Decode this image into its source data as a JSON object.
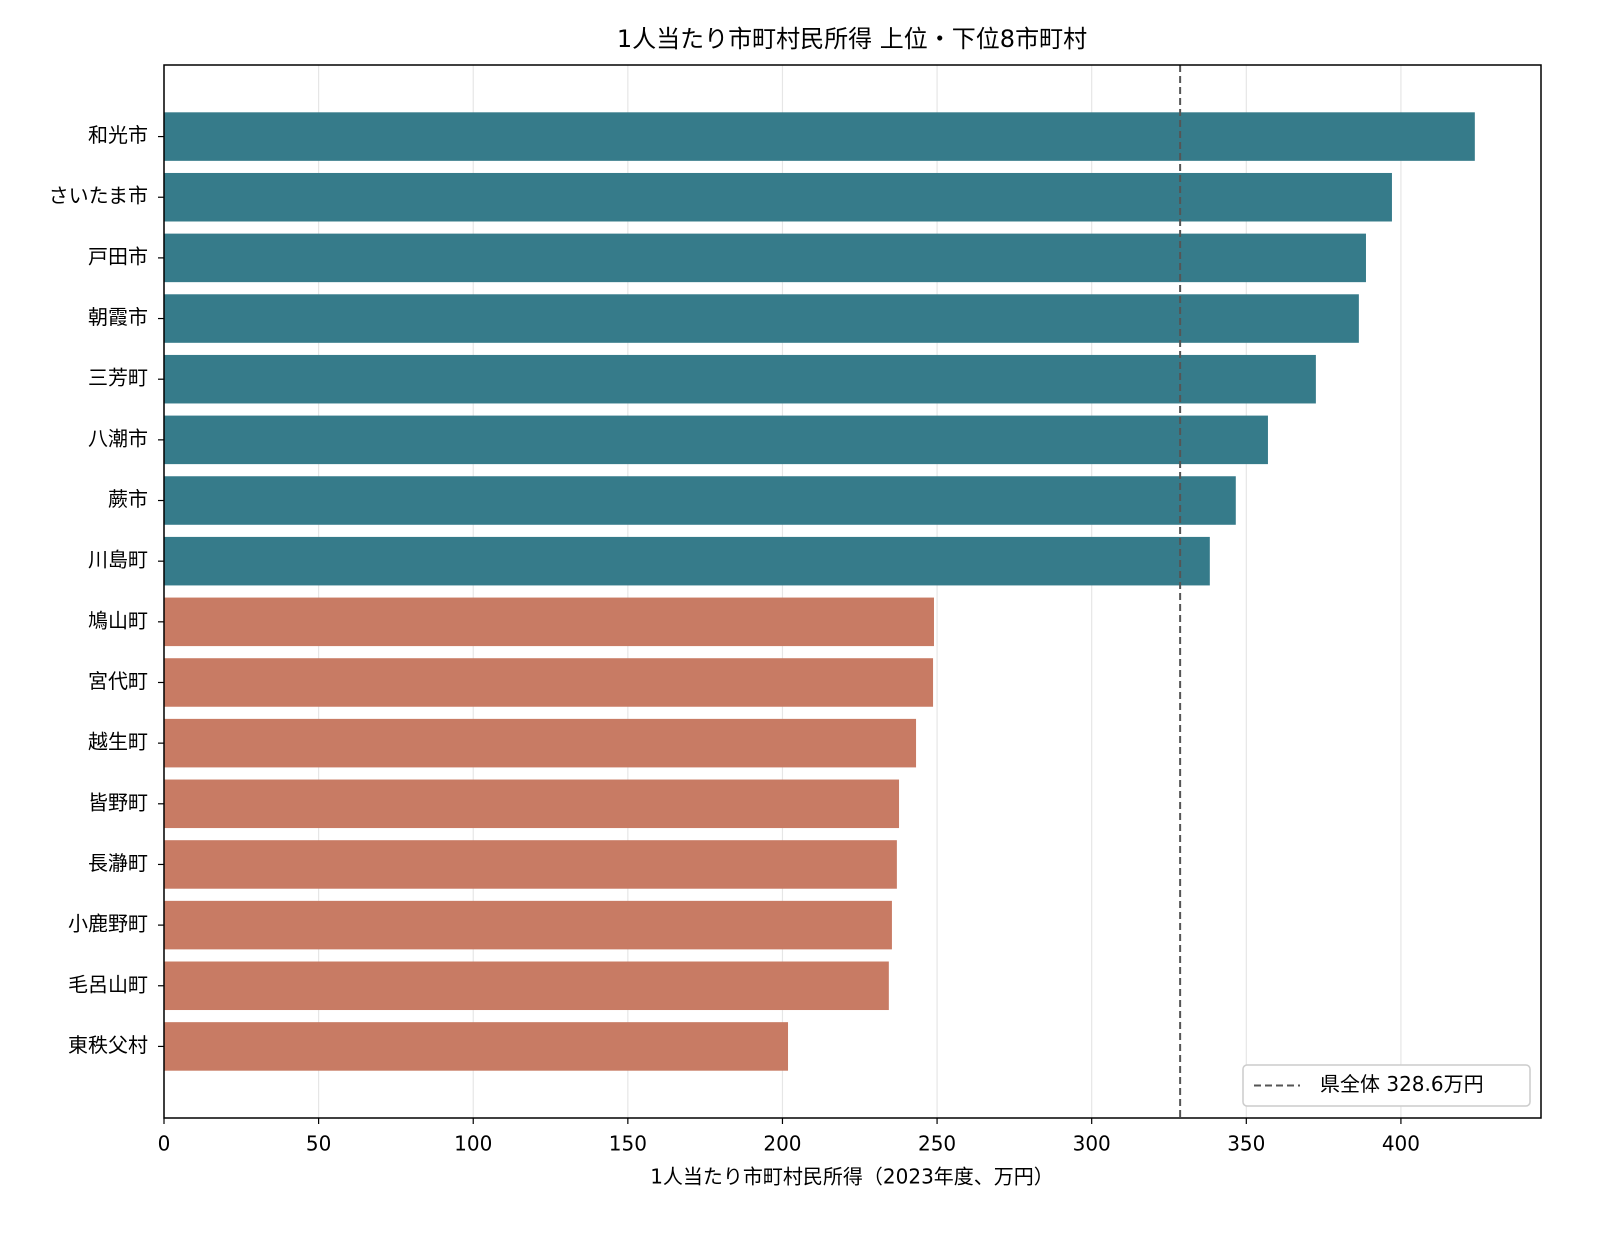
{
  "chart_data": {
    "type": "barh",
    "title": "1人当たり市町村民所得 上位・下位8市町村",
    "xlabel": "1人当たり市町村民所得（2023年度、万円）",
    "categories": [
      "和光市",
      "さいたま市",
      "戸田市",
      "朝霞市",
      "三芳町",
      "八潮市",
      "蕨市",
      "川島町",
      "鳩山町",
      "宮代町",
      "越生町",
      "皆野町",
      "長瀞町",
      "小鹿野町",
      "毛呂山町",
      "東秩父村"
    ],
    "values": [
      423.9,
      397.1,
      388.7,
      386.4,
      372.5,
      357.0,
      346.6,
      338.2,
      249.0,
      248.7,
      243.2,
      237.7,
      237.0,
      235.4,
      234.4,
      201.8
    ],
    "colors": [
      "#367b8a",
      "#367b8a",
      "#367b8a",
      "#367b8a",
      "#367b8a",
      "#367b8a",
      "#367b8a",
      "#367b8a",
      "#c87b64",
      "#c87b64",
      "#c87b64",
      "#c87b64",
      "#c87b64",
      "#c87b64",
      "#c87b64",
      "#c87b64"
    ],
    "xlim": [
      0,
      445.3
    ],
    "xticks": [
      0,
      50,
      100,
      150,
      200,
      250,
      300,
      350,
      400
    ],
    "grid": true,
    "reference_line": {
      "value": 328.6,
      "label": "県全体 328.6万円",
      "color": "#555555"
    },
    "legend": "lower right"
  }
}
